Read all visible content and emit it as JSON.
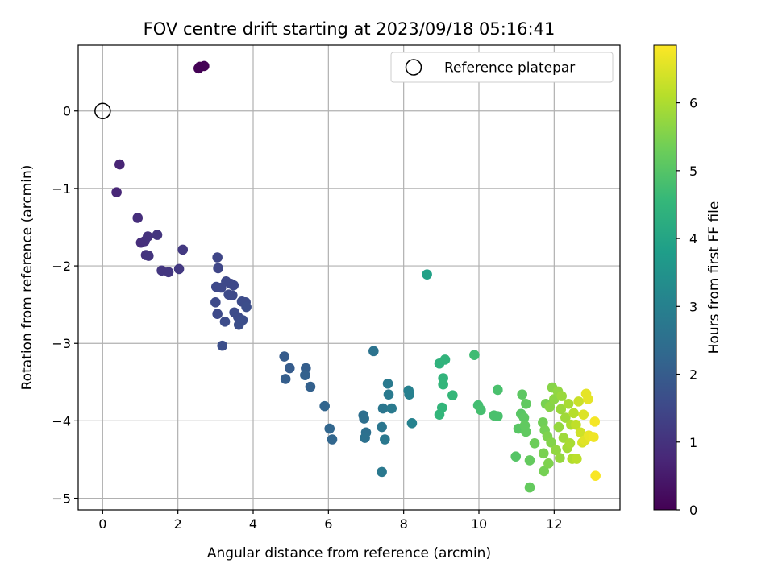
{
  "chart_data": {
    "type": "scatter",
    "title": "FOV centre drift starting at 2023/09/18 05:16:41",
    "xlabel": "Angular distance from reference (arcmin)",
    "ylabel": "Rotation from reference (arcmin)",
    "xlim": [
      -0.65,
      13.75
    ],
    "ylim": [
      -5.15,
      0.85
    ],
    "xticks": [
      0,
      2,
      4,
      6,
      8,
      10,
      12
    ],
    "yticks": [
      -5,
      -4,
      -3,
      -2,
      -1,
      0
    ],
    "xtick_labels": [
      "0",
      "2",
      "4",
      "6",
      "8",
      "10",
      "12"
    ],
    "ytick_labels": [
      "−5",
      "−4",
      "−3",
      "−2",
      "−1",
      "0"
    ],
    "grid": true,
    "legend": {
      "placement": "top-right",
      "entries": [
        "Reference platepar"
      ]
    },
    "reference_point": {
      "x": 0,
      "y": 0
    },
    "colorbar": {
      "label": "Hours from first FF file",
      "colormap": "viridis",
      "range": [
        0,
        6.85
      ],
      "ticks": [
        0,
        1,
        2,
        3,
        4,
        5,
        6
      ],
      "tick_labels": [
        "0",
        "1",
        "2",
        "3",
        "4",
        "5",
        "6"
      ]
    },
    "colors": {
      "viridis": [
        "#440154",
        "#482878",
        "#3e4989",
        "#31688e",
        "#26828e",
        "#1f9e89",
        "#35b779",
        "#6ece58",
        "#b5de2b",
        "#fde725"
      ],
      "grid": "#b0b0b0",
      "reference_marker": "#000000"
    },
    "series": [
      {
        "points": [
          [
            2.58,
            0.57,
            0.0
          ],
          [
            2.7,
            0.58,
            0.03
          ],
          [
            2.55,
            0.55,
            0.02
          ],
          [
            0.45,
            -0.69,
            0.7
          ],
          [
            0.37,
            -1.05,
            0.75
          ],
          [
            0.93,
            -1.38,
            0.9
          ],
          [
            1.02,
            -1.7,
            0.9
          ],
          [
            1.12,
            -1.68,
            0.95
          ],
          [
            1.2,
            -1.62,
            1.0
          ],
          [
            1.15,
            -1.86,
            1.0
          ],
          [
            1.22,
            -1.87,
            1.05
          ],
          [
            1.45,
            -1.6,
            1.05
          ],
          [
            1.57,
            -2.06,
            1.1
          ],
          [
            1.75,
            -2.08,
            1.1
          ],
          [
            2.03,
            -2.04,
            1.15
          ],
          [
            2.13,
            -1.79,
            1.15
          ],
          [
            3.05,
            -1.89,
            1.45
          ],
          [
            3.07,
            -2.03,
            1.45
          ],
          [
            3.02,
            -2.27,
            1.5
          ],
          [
            3.15,
            -2.28,
            1.5
          ],
          [
            3.28,
            -2.2,
            1.5
          ],
          [
            3.4,
            -2.23,
            1.5
          ],
          [
            3.48,
            -2.25,
            1.5
          ],
          [
            3.35,
            -2.37,
            1.55
          ],
          [
            3.45,
            -2.38,
            1.55
          ],
          [
            3.0,
            -2.47,
            1.55
          ],
          [
            3.05,
            -2.62,
            1.55
          ],
          [
            3.25,
            -2.72,
            1.6
          ],
          [
            3.5,
            -2.6,
            1.6
          ],
          [
            3.6,
            -2.66,
            1.6
          ],
          [
            3.7,
            -2.46,
            1.6
          ],
          [
            3.8,
            -2.47,
            1.6
          ],
          [
            3.82,
            -2.53,
            1.65
          ],
          [
            3.62,
            -2.76,
            1.65
          ],
          [
            3.72,
            -2.7,
            1.65
          ],
          [
            3.18,
            -3.03,
            1.65
          ],
          [
            4.83,
            -3.17,
            2.0
          ],
          [
            4.97,
            -3.32,
            2.0
          ],
          [
            4.86,
            -3.46,
            2.05
          ],
          [
            5.4,
            -3.32,
            2.05
          ],
          [
            5.38,
            -3.41,
            2.1
          ],
          [
            5.52,
            -3.56,
            2.1
          ],
          [
            5.9,
            -3.81,
            2.2
          ],
          [
            6.03,
            -4.1,
            2.25
          ],
          [
            6.1,
            -4.24,
            2.25
          ],
          [
            6.93,
            -3.93,
            2.5
          ],
          [
            6.95,
            -3.97,
            2.5
          ],
          [
            7.0,
            -4.15,
            2.5
          ],
          [
            6.97,
            -4.22,
            2.55
          ],
          [
            7.2,
            -3.1,
            2.6
          ],
          [
            7.42,
            -4.08,
            2.7
          ],
          [
            7.45,
            -3.84,
            2.7
          ],
          [
            7.5,
            -4.24,
            2.75
          ],
          [
            7.42,
            -4.66,
            2.75
          ],
          [
            7.58,
            -3.52,
            2.8
          ],
          [
            7.6,
            -3.66,
            2.8
          ],
          [
            7.68,
            -3.84,
            2.8
          ],
          [
            8.13,
            -3.61,
            3.0
          ],
          [
            8.15,
            -3.66,
            3.0
          ],
          [
            8.22,
            -4.03,
            3.05
          ],
          [
            8.62,
            -2.11,
            3.9
          ],
          [
            8.95,
            -3.26,
            4.4
          ],
          [
            9.1,
            -3.21,
            4.45
          ],
          [
            9.05,
            -3.45,
            4.45
          ],
          [
            9.05,
            -3.53,
            4.5
          ],
          [
            9.02,
            -3.83,
            4.5
          ],
          [
            8.95,
            -3.92,
            4.5
          ],
          [
            9.3,
            -3.67,
            4.55
          ],
          [
            9.88,
            -3.15,
            4.7
          ],
          [
            9.98,
            -3.8,
            4.75
          ],
          [
            10.05,
            -3.86,
            4.8
          ],
          [
            10.4,
            -3.93,
            4.85
          ],
          [
            10.5,
            -3.94,
            4.85
          ],
          [
            10.5,
            -3.6,
            4.85
          ],
          [
            10.98,
            -4.46,
            5.0
          ],
          [
            11.05,
            -4.1,
            5.05
          ],
          [
            11.12,
            -3.91,
            5.05
          ],
          [
            11.2,
            -3.96,
            5.1
          ],
          [
            11.15,
            -3.66,
            5.1
          ],
          [
            11.25,
            -3.78,
            5.15
          ],
          [
            11.22,
            -4.06,
            5.15
          ],
          [
            11.25,
            -4.14,
            5.15
          ],
          [
            11.35,
            -4.51,
            5.2
          ],
          [
            11.35,
            -4.86,
            5.2
          ],
          [
            11.48,
            -4.29,
            5.3
          ],
          [
            11.7,
            -4.02,
            5.35
          ],
          [
            11.75,
            -4.12,
            5.4
          ],
          [
            11.73,
            -4.65,
            5.4
          ],
          [
            11.72,
            -4.42,
            5.45
          ],
          [
            11.78,
            -3.78,
            5.45
          ],
          [
            11.82,
            -4.2,
            5.5
          ],
          [
            11.85,
            -4.55,
            5.5
          ],
          [
            11.92,
            -4.28,
            5.55
          ],
          [
            11.95,
            -3.57,
            5.6
          ],
          [
            11.88,
            -3.82,
            5.6
          ],
          [
            12.0,
            -3.72,
            5.65
          ],
          [
            12.05,
            -4.38,
            5.7
          ],
          [
            12.1,
            -3.62,
            5.7
          ],
          [
            12.12,
            -4.08,
            5.75
          ],
          [
            12.15,
            -4.48,
            5.75
          ],
          [
            12.18,
            -3.85,
            5.8
          ],
          [
            12.2,
            -3.68,
            5.8
          ],
          [
            12.25,
            -4.22,
            5.85
          ],
          [
            12.3,
            -3.96,
            5.85
          ],
          [
            12.35,
            -4.35,
            5.9
          ],
          [
            12.38,
            -3.78,
            5.95
          ],
          [
            12.42,
            -4.29,
            5.95
          ],
          [
            12.45,
            -4.05,
            6.0
          ],
          [
            12.48,
            -4.49,
            6.05
          ],
          [
            12.52,
            -3.9,
            6.1
          ],
          [
            12.6,
            -4.49,
            6.15
          ],
          [
            12.58,
            -4.05,
            6.2
          ],
          [
            12.65,
            -3.75,
            6.3
          ],
          [
            12.7,
            -4.15,
            6.35
          ],
          [
            12.75,
            -4.28,
            6.45
          ],
          [
            12.78,
            -3.92,
            6.5
          ],
          [
            12.82,
            -4.25,
            6.55
          ],
          [
            12.85,
            -3.65,
            6.6
          ],
          [
            12.9,
            -3.72,
            6.6
          ],
          [
            12.92,
            -4.19,
            6.65
          ],
          [
            13.05,
            -4.21,
            6.7
          ],
          [
            13.08,
            -4.01,
            6.75
          ],
          [
            13.1,
            -4.71,
            6.8
          ]
        ]
      }
    ]
  }
}
